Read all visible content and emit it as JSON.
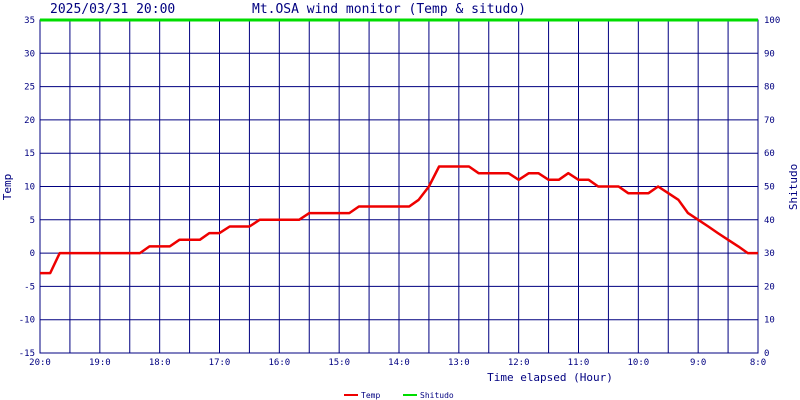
{
  "header": {
    "datetime": "2025/03/31 20:00",
    "title": "Mt.OSA wind monitor (Temp & situdo)"
  },
  "chart_data": {
    "type": "line",
    "xlabel": "Time elapsed (Hour)",
    "ylabel_left": "Temp",
    "ylabel_right": "Shitudo",
    "ylim_left": [
      -15,
      35
    ],
    "ylim_right": [
      0,
      100
    ],
    "yticks_left": [
      "35",
      "30",
      "25",
      "20",
      "15",
      "10",
      "5",
      "0",
      "-5",
      "-10",
      "-15"
    ],
    "yticks_right": [
      "100",
      "90",
      "80",
      "70",
      "60",
      "50",
      "40",
      "30",
      "20",
      "10",
      "0"
    ],
    "xticks": [
      "20:0",
      "19:0",
      "18:0",
      "17:0",
      "16:0",
      "15:0",
      "14:0",
      "13:0",
      "12:0",
      "11:0",
      "10:0",
      "9:0",
      "8:0"
    ],
    "x_hours_elapsed_max": 12,
    "grid": true,
    "legend_position": "bottom",
    "colors": {
      "temp": "#ee0000",
      "shitudo": "#00dd00",
      "grid": "#000080"
    },
    "series": [
      {
        "name": "Temp",
        "axis": "left",
        "x": [
          0,
          0.17,
          0.33,
          0.5,
          1,
          1.5,
          1.67,
          1.83,
          2,
          2.17,
          2.33,
          2.5,
          2.67,
          2.83,
          3,
          3.17,
          3.33,
          3.5,
          3.67,
          3.83,
          4,
          4.17,
          4.33,
          4.5,
          4.67,
          4.83,
          5,
          5.17,
          5.33,
          5.5,
          5.67,
          5.83,
          6,
          6.17,
          6.33,
          6.5,
          6.67,
          6.83,
          7,
          7.17,
          7.33,
          7.5,
          7.67,
          7.83,
          8,
          8.17,
          8.33,
          8.5,
          8.67,
          8.83,
          9,
          9.17,
          9.33,
          9.5,
          9.67,
          9.83,
          10,
          10.17,
          10.33,
          10.5,
          10.67,
          10.83,
          11,
          11.17,
          11.33,
          11.5,
          11.67,
          11.83,
          12
        ],
        "values": [
          -3,
          -3,
          0,
          0,
          0,
          0,
          0,
          1,
          1,
          1,
          2,
          2,
          2,
          3,
          3,
          4,
          4,
          4,
          5,
          5,
          5,
          5,
          5,
          6,
          6,
          6,
          6,
          6,
          7,
          7,
          7,
          7,
          7,
          7,
          8,
          10,
          13,
          13,
          13,
          13,
          12,
          12,
          12,
          12,
          11,
          12,
          12,
          11,
          11,
          12,
          11,
          11,
          10,
          10,
          10,
          9,
          9,
          9,
          10,
          9,
          8,
          6,
          5,
          4,
          3,
          2,
          1,
          0,
          0
        ]
      },
      {
        "name": "Shitudo",
        "axis": "right",
        "x": [
          0,
          12
        ],
        "values": [
          100,
          100
        ]
      }
    ]
  }
}
